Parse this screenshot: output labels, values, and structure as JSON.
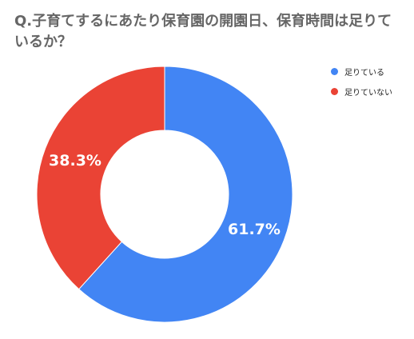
{
  "chart_data": {
    "type": "pie",
    "title": "Q.子育てするにあたり保育園の開園日、保育時間は足りているか？",
    "categories": [
      "足りている",
      "足りていない"
    ],
    "values": [
      61.7,
      38.3
    ],
    "labels": [
      "61.7%",
      "38.3%"
    ],
    "colors": [
      "#4285F4",
      "#EA4335"
    ],
    "donut": true,
    "legend_position": "top-right"
  }
}
